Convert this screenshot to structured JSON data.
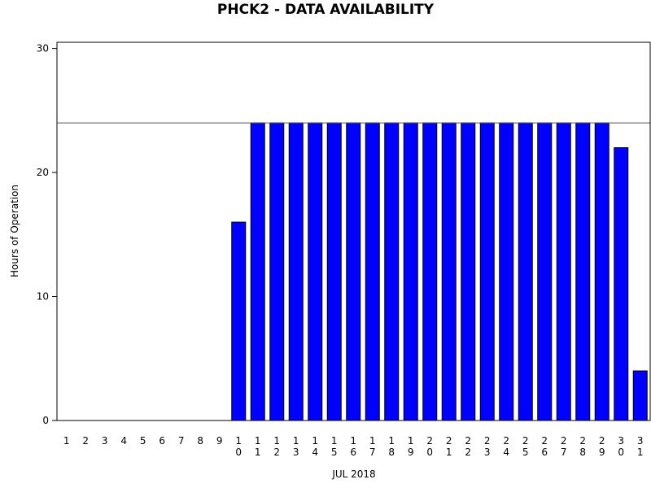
{
  "chart_data": {
    "type": "bar",
    "title": "PHCK2 - DATA AVAILABILITY",
    "x_label": "JUL 2018",
    "y_label": "Hours of Operation",
    "categories": [
      "1",
      "2",
      "3",
      "4",
      "5",
      "6",
      "7",
      "8",
      "9",
      "10",
      "11",
      "12",
      "13",
      "14",
      "15",
      "16",
      "17",
      "18",
      "19",
      "20",
      "21",
      "22",
      "23",
      "24",
      "25",
      "26",
      "27",
      "28",
      "29",
      "30",
      "31"
    ],
    "values": [
      0,
      0,
      0,
      0,
      0,
      0,
      0,
      0,
      0,
      16,
      24,
      24,
      24,
      24,
      24,
      24,
      24,
      24,
      24,
      24,
      24,
      24,
      24,
      24,
      24,
      24,
      24,
      24,
      24,
      22,
      4
    ],
    "color": "#0000ff",
    "reference_line": 24,
    "ylim": [
      0,
      30.5
    ],
    "yticks": [
      0,
      10,
      20,
      30
    ],
    "grid": false
  }
}
